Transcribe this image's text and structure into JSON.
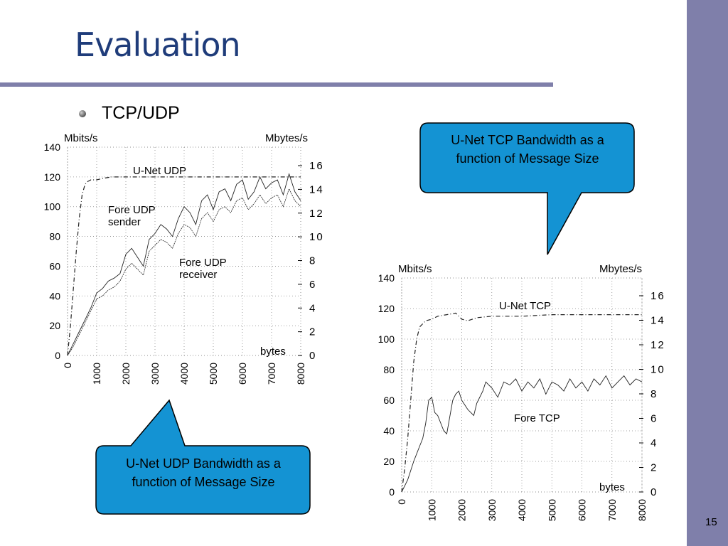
{
  "slide": {
    "title": "Evaluation",
    "bullet": "TCP/UDP",
    "page_number": "15"
  },
  "callouts": {
    "tcp": "U-Net TCP Bandwidth as a function of Message Size",
    "udp": "U-Net UDP Bandwidth as a function of Message Size"
  },
  "colors": {
    "sidebar": "#7f7faa",
    "title": "#1f3c7a",
    "callout_fill": "#1493d3"
  },
  "chart_data": [
    {
      "type": "line",
      "left_axis_label": "Mbits/s",
      "right_axis_label": "Mbytes/s",
      "x_unit_label": "bytes",
      "x_ticks": [
        "0",
        "1000",
        "2000",
        "3000",
        "4000",
        "5000",
        "6000",
        "7000",
        "8000"
      ],
      "y_ticks": [
        "0",
        "20",
        "40",
        "60",
        "80",
        "100",
        "120",
        "140"
      ],
      "y2_ticks": [
        "0",
        "2",
        "4",
        "6",
        "8",
        "10",
        "12",
        "14",
        "16"
      ],
      "xlim": [
        0,
        8000
      ],
      "ylim": [
        0,
        140
      ],
      "grid": "dotted",
      "series": [
        {
          "name": "U-Net UDP",
          "x": [
            0,
            100,
            200,
            300,
            400,
            500,
            600,
            700,
            800,
            1000,
            1200,
            1500,
            2000,
            2500,
            3000,
            3500,
            4000,
            5000,
            6000,
            7000,
            8000
          ],
          "y": [
            0,
            20,
            45,
            70,
            92,
            108,
            115,
            117,
            118,
            118,
            119,
            120,
            120,
            120,
            120,
            120,
            120,
            120,
            120,
            120,
            120
          ]
        },
        {
          "name": "Fore UDP sender",
          "x": [
            0,
            200,
            400,
            600,
            800,
            1000,
            1200,
            1400,
            1600,
            1800,
            2000,
            2200,
            2400,
            2600,
            2800,
            3000,
            3200,
            3400,
            3600,
            3800,
            4000,
            4200,
            4400,
            4600,
            4800,
            5000,
            5200,
            5400,
            5600,
            5800,
            6000,
            6200,
            6400,
            6600,
            6800,
            7000,
            7200,
            7400,
            7600,
            7800,
            8000
          ],
          "y": [
            0,
            8,
            16,
            24,
            32,
            42,
            45,
            50,
            52,
            55,
            68,
            72,
            66,
            60,
            78,
            82,
            88,
            85,
            80,
            92,
            100,
            96,
            88,
            104,
            108,
            98,
            110,
            112,
            104,
            115,
            118,
            105,
            110,
            120,
            112,
            116,
            118,
            108,
            122,
            110,
            104
          ]
        },
        {
          "name": "Fore UDP receiver",
          "x": [
            0,
            200,
            400,
            600,
            800,
            1000,
            1200,
            1400,
            1600,
            1800,
            2000,
            2200,
            2400,
            2600,
            2800,
            3000,
            3200,
            3400,
            3600,
            3800,
            4000,
            4200,
            4400,
            4600,
            4800,
            5000,
            5200,
            5400,
            5600,
            5800,
            6000,
            6200,
            6400,
            6600,
            6800,
            7000,
            7200,
            7400,
            7600,
            7800,
            8000
          ],
          "y": [
            0,
            6,
            14,
            22,
            30,
            38,
            40,
            44,
            46,
            50,
            58,
            62,
            58,
            54,
            70,
            74,
            78,
            76,
            72,
            82,
            88,
            86,
            80,
            92,
            96,
            90,
            98,
            100,
            96,
            104,
            106,
            98,
            102,
            108,
            102,
            106,
            108,
            100,
            112,
            104,
            100
          ]
        }
      ]
    },
    {
      "type": "line",
      "left_axis_label": "Mbits/s",
      "right_axis_label": "Mbytes/s",
      "x_unit_label": "bytes",
      "x_ticks": [
        "0",
        "1000",
        "2000",
        "3000",
        "4000",
        "5000",
        "6000",
        "7000",
        "8000"
      ],
      "y_ticks": [
        "0",
        "20",
        "40",
        "60",
        "80",
        "100",
        "120",
        "140"
      ],
      "y2_ticks": [
        "0",
        "2",
        "4",
        "6",
        "8",
        "10",
        "12",
        "14",
        "16"
      ],
      "xlim": [
        0,
        8000
      ],
      "ylim": [
        0,
        140
      ],
      "grid": "dotted",
      "series": [
        {
          "name": "U-Net TCP",
          "x": [
            0,
            100,
            200,
            300,
            400,
            500,
            600,
            700,
            800,
            1000,
            1200,
            1500,
            1800,
            2000,
            2200,
            2500,
            3000,
            4000,
            5000,
            6000,
            7000,
            8000
          ],
          "y": [
            0,
            15,
            35,
            60,
            85,
            100,
            108,
            110,
            112,
            113,
            115,
            116,
            117,
            113,
            112,
            114,
            115,
            115,
            116,
            116,
            116,
            116
          ]
        },
        {
          "name": "Fore TCP",
          "x": [
            0,
            200,
            400,
            600,
            700,
            800,
            900,
            1000,
            1100,
            1200,
            1400,
            1500,
            1700,
            1800,
            1900,
            2000,
            2200,
            2400,
            2500,
            2700,
            2800,
            3000,
            3200,
            3400,
            3600,
            3800,
            4000,
            4200,
            4400,
            4600,
            4800,
            5000,
            5200,
            5400,
            5600,
            5800,
            6000,
            6200,
            6400,
            6600,
            6800,
            7000,
            7200,
            7400,
            7600,
            7800,
            8000
          ],
          "y": [
            0,
            8,
            20,
            30,
            35,
            45,
            60,
            62,
            52,
            50,
            40,
            38,
            60,
            64,
            66,
            60,
            54,
            50,
            58,
            66,
            72,
            68,
            62,
            72,
            70,
            74,
            66,
            72,
            68,
            74,
            64,
            72,
            70,
            66,
            74,
            68,
            72,
            66,
            74,
            70,
            76,
            68,
            72,
            76,
            70,
            74,
            72
          ]
        }
      ]
    }
  ]
}
